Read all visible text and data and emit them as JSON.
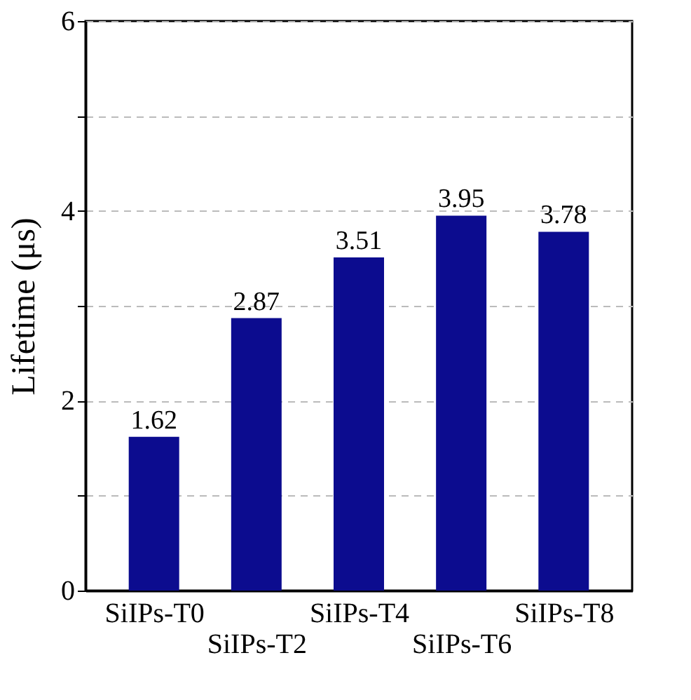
{
  "chart_data": {
    "type": "bar",
    "ylabel": "Lifetime (μs)",
    "categories": [
      "SiIPs-T0",
      "SiIPs-T2",
      "SiIPs-T4",
      "SiIPs-T6",
      "SiIPs-T8"
    ],
    "values": [
      1.62,
      2.87,
      3.51,
      3.95,
      3.78
    ],
    "color": "#0c0c8f",
    "data_labels": true,
    "ylim": [
      0,
      6
    ],
    "yticks": [
      0,
      {
        "value": 1,
        "label": null
      },
      2,
      {
        "value": 3,
        "label": null
      },
      4,
      {
        "value": 5,
        "label": null
      },
      6
    ],
    "grid": "y"
  }
}
